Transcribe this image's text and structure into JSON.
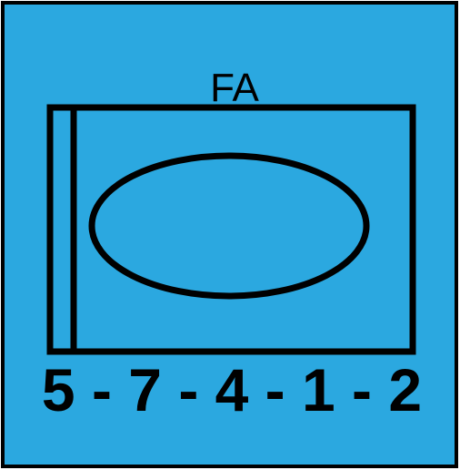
{
  "sign": {
    "background_color": "#2BA8E0",
    "stroke_color": "#000000",
    "label": "FA",
    "code": "5 - 7 - 4 - 1 - 2",
    "icon": "rectangle-with-oval-symbol"
  }
}
